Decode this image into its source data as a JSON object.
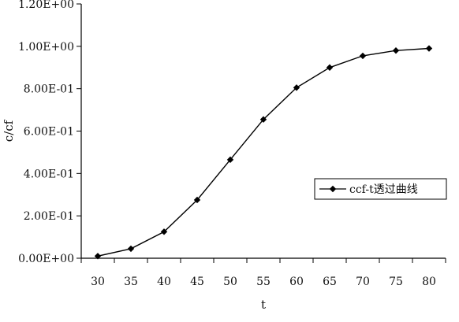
{
  "chart_data": {
    "type": "line",
    "title": "",
    "xlabel": "t",
    "ylabel": "c/cf",
    "x": [
      30,
      35,
      40,
      45,
      50,
      55,
      60,
      65,
      70,
      75,
      80
    ],
    "series": [
      {
        "name": "ccf-t透过曲线",
        "values": [
          0.01,
          0.045,
          0.125,
          0.275,
          0.465,
          0.655,
          0.805,
          0.9,
          0.955,
          0.98,
          0.99
        ],
        "color": "#000000",
        "marker": "diamond"
      }
    ],
    "x_ticks": [
      "30",
      "35",
      "40",
      "45",
      "50",
      "55",
      "60",
      "65",
      "70",
      "75",
      "80"
    ],
    "y_ticks": [
      {
        "value": 0.0,
        "label": "0.00E+00"
      },
      {
        "value": 0.2,
        "label": "2.00E-01"
      },
      {
        "value": 0.4,
        "label": "4.00E-01"
      },
      {
        "value": 0.6,
        "label": "6.00E-01"
      },
      {
        "value": 0.8,
        "label": "8.00E-01"
      },
      {
        "value": 1.0,
        "label": "1.00E+00"
      },
      {
        "value": 1.2,
        "label": "1.20E+00"
      }
    ],
    "xlim": [
      27.5,
      82.5
    ],
    "ylim": [
      0,
      1.2
    ],
    "grid": false,
    "legend_position": "right"
  }
}
